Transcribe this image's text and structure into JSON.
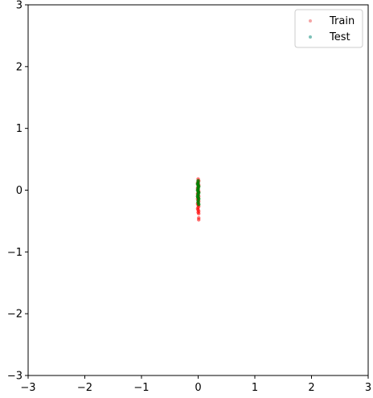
{
  "chart_data": {
    "type": "scatter",
    "title": "",
    "xlabel": "",
    "ylabel": "",
    "xlim": [
      -3,
      3
    ],
    "ylim": [
      -3,
      3
    ],
    "xticks": [
      -3,
      -2,
      -1,
      0,
      1,
      2,
      3
    ],
    "yticks": [
      -3,
      -2,
      -1,
      0,
      1,
      2,
      3
    ],
    "xtick_labels": [
      "−3",
      "−2",
      "−1",
      "0",
      "1",
      "2",
      "3"
    ],
    "ytick_labels": [
      "−3",
      "−2",
      "−1",
      "0",
      "1",
      "2",
      "3"
    ],
    "grid": false,
    "legend_position": "top-right",
    "series": [
      {
        "name": "Train",
        "color": "#ff0000",
        "points": [
          [
            0.0,
            0.18
          ],
          [
            0.01,
            0.15
          ],
          [
            -0.01,
            0.12
          ],
          [
            0.0,
            0.1
          ],
          [
            0.01,
            0.08
          ],
          [
            0.0,
            0.05
          ],
          [
            -0.01,
            0.03
          ],
          [
            0.0,
            0.01
          ],
          [
            0.01,
            -0.02
          ],
          [
            0.0,
            -0.04
          ],
          [
            -0.01,
            -0.06
          ],
          [
            0.0,
            -0.08
          ],
          [
            0.01,
            -0.1
          ],
          [
            0.0,
            -0.12
          ],
          [
            -0.01,
            -0.14
          ],
          [
            0.0,
            -0.16
          ],
          [
            0.01,
            -0.18
          ],
          [
            0.0,
            -0.2
          ],
          [
            -0.01,
            -0.22
          ],
          [
            0.0,
            -0.24
          ],
          [
            0.01,
            -0.26
          ],
          [
            0.0,
            -0.28
          ],
          [
            -0.01,
            -0.3
          ],
          [
            0.0,
            -0.32
          ],
          [
            0.01,
            -0.34
          ],
          [
            0.0,
            -0.36
          ],
          [
            0.01,
            -0.38
          ],
          [
            0.01,
            -0.45
          ],
          [
            0.01,
            -0.48
          ]
        ]
      },
      {
        "name": "Test",
        "color": "#008000",
        "points": [
          [
            0.0,
            0.15
          ],
          [
            0.0,
            0.12
          ],
          [
            -0.01,
            0.1
          ],
          [
            0.0,
            0.08
          ],
          [
            0.01,
            0.06
          ],
          [
            0.0,
            0.04
          ],
          [
            0.0,
            0.02
          ],
          [
            -0.01,
            0.0
          ],
          [
            0.0,
            -0.02
          ],
          [
            0.01,
            -0.04
          ],
          [
            0.0,
            -0.06
          ],
          [
            0.0,
            -0.08
          ],
          [
            -0.01,
            -0.1
          ],
          [
            0.0,
            -0.12
          ],
          [
            0.01,
            -0.14
          ],
          [
            0.0,
            -0.17
          ],
          [
            0.0,
            -0.2
          ],
          [
            0.01,
            -0.23
          ]
        ]
      }
    ],
    "legend_series_colors": [
      "#f4a5a5",
      "#7cc1b8"
    ]
  }
}
